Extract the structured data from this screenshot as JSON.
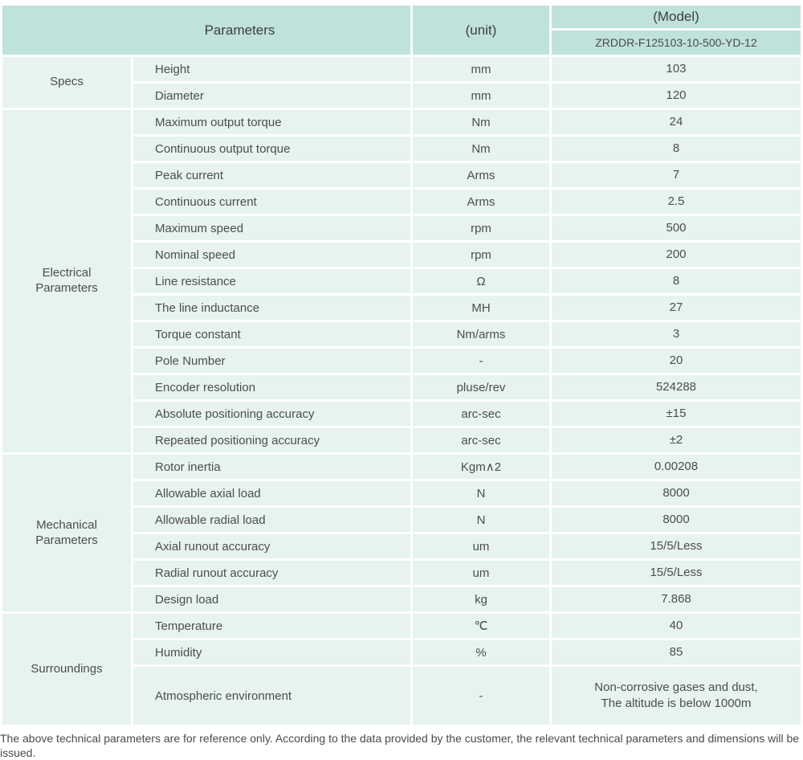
{
  "colors": {
    "header_bg": "#bfe2da",
    "cell_bg": "#e6f3f0"
  },
  "header": {
    "parameters": "Parameters",
    "unit": "(unit)",
    "model": "(Model)",
    "model_number": "ZRDDR-F125103-10-500-YD-12"
  },
  "sections": [
    {
      "category": "Specs",
      "rows": [
        {
          "name": "Height",
          "unit": "mm",
          "value": "103"
        },
        {
          "name": "Diameter",
          "unit": "mm",
          "value": "120"
        }
      ]
    },
    {
      "category": "Electrical\nParameters",
      "rows": [
        {
          "name": "Maximum output torque",
          "unit": "Nm",
          "value": "24"
        },
        {
          "name": "Continuous output torque",
          "unit": "Nm",
          "value": "8"
        },
        {
          "name": "Peak current",
          "unit": "Arms",
          "value": "7"
        },
        {
          "name": "Continuous current",
          "unit": "Arms",
          "value": "2.5"
        },
        {
          "name": "Maximum speed",
          "unit": "rpm",
          "value": "500"
        },
        {
          "name": "Nominal speed",
          "unit": "rpm",
          "value": "200"
        },
        {
          "name": "Line resistance",
          "unit": "Ω",
          "value": "8"
        },
        {
          "name": "The line inductance",
          "unit": "MH",
          "value": "27"
        },
        {
          "name": "Torque constant",
          "unit": "Nm/arms",
          "value": "3"
        },
        {
          "name": "Pole Number",
          "unit": "-",
          "value": "20"
        },
        {
          "name": "Encoder resolution",
          "unit": "pluse/rev",
          "value": "524288"
        },
        {
          "name": "Absolute positioning accuracy",
          "unit": "arc-sec",
          "value": "±15"
        },
        {
          "name": "Repeated positioning accuracy",
          "unit": "arc-sec",
          "value": "±2"
        }
      ]
    },
    {
      "category": "Mechanical\nParameters",
      "rows": [
        {
          "name": "Rotor inertia",
          "unit": "Kgm∧2",
          "value": "0.00208"
        },
        {
          "name": "Allowable axial load",
          "unit": "N",
          "value": "8000"
        },
        {
          "name": "Allowable radial load",
          "unit": "N",
          "value": "8000"
        },
        {
          "name": "Axial runout accuracy",
          "unit": "um",
          "value": "15/5/Less"
        },
        {
          "name": "Radial runout accuracy",
          "unit": "um",
          "value": "15/5/Less"
        },
        {
          "name": "Design load",
          "unit": "kg",
          "value": "7.868"
        }
      ]
    },
    {
      "category": "Surroundings",
      "rows": [
        {
          "name": "Temperature",
          "unit": "℃",
          "value": "40"
        },
        {
          "name": "Humidity",
          "unit": "%",
          "value": "85"
        },
        {
          "name": "Atmospheric environment",
          "unit": "-",
          "value": "Non-corrosive gases and dust,\nThe altitude is below 1000m",
          "tall": true
        }
      ]
    }
  ],
  "footnote": "The above technical parameters are for reference only. According to the data provided by the customer, the relevant technical parameters and dimensions will be issued."
}
